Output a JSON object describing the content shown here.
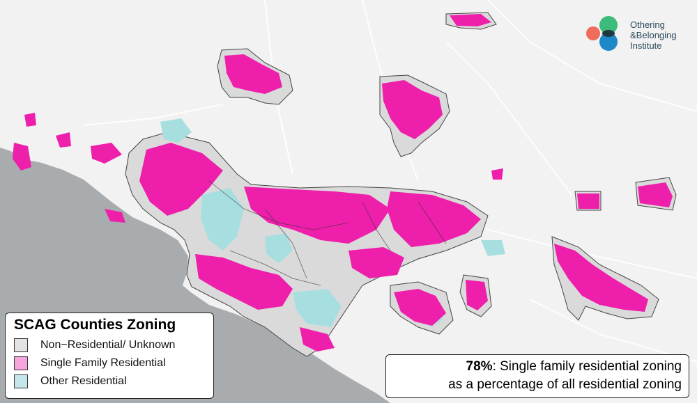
{
  "logo": {
    "line1": "Othering",
    "line2": "&Belonging",
    "line3": "Institute",
    "colors": [
      "#ef6c5a",
      "#3dbb7b",
      "#1e88c8"
    ],
    "overlap_color": "#1c3a3f"
  },
  "legend": {
    "title": "SCAG Counties Zoning",
    "items": [
      {
        "label": "Non−Residential/ Unknown",
        "color": "#e3e3e3"
      },
      {
        "label": "Single Family Residential",
        "color": "#f5a6dc"
      },
      {
        "label": "Other Residential",
        "color": "#c4e6e8"
      }
    ]
  },
  "stat": {
    "value": "78%",
    "text1": ": Single family residential zoning",
    "text2": "as a percentage of all residential zoning"
  },
  "map_colors": {
    "ocean": "#a9acaf",
    "land": "#f2f2f2",
    "sfr": "#ee1fab",
    "other": "#a7dfe1",
    "nonres": "#dadada",
    "outline": "#444444"
  }
}
